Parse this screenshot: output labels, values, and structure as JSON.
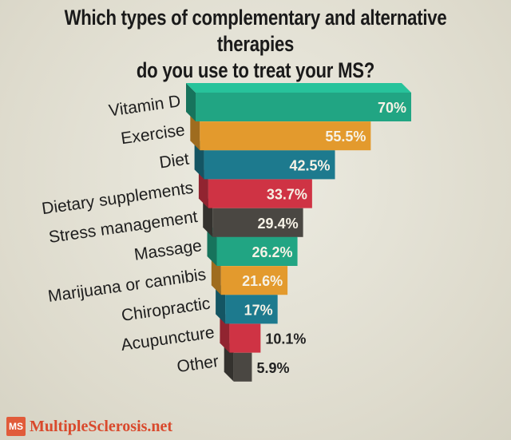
{
  "title_line1": "Which types of complementary and alternative therapies",
  "title_line2": "do you use to treat your MS?",
  "footer": {
    "logo_mark": "MS",
    "site_name": "MultipleSclerosis.net"
  },
  "chart_data": {
    "type": "bar",
    "orientation": "horizontal",
    "title": "Which types of complementary and alternative therapies do you use to treat your MS?",
    "categories": [
      "Vitamin D",
      "Exercise",
      "Diet",
      "Dietary supplements",
      "Stress management",
      "Massage",
      "Marijuana or cannibis",
      "Chiropractic",
      "Acupuncture",
      "Other"
    ],
    "values": [
      70,
      55.5,
      42.5,
      33.7,
      29.4,
      26.2,
      21.6,
      17,
      10.1,
      5.9
    ],
    "value_labels": [
      "70%",
      "55.5%",
      "42.5%",
      "33.7%",
      "29.4%",
      "26.2%",
      "21.6%",
      "17%",
      "10.1%",
      "5.9%"
    ],
    "colors": [
      "#21a583",
      "#e39a2d",
      "#1d7a8e",
      "#cf3344",
      "#4a4742",
      "#21a583",
      "#e39a2d",
      "#1d7a8e",
      "#cf3344",
      "#4a4742"
    ],
    "xlim": [
      0,
      70
    ],
    "grid": false,
    "legend": "none"
  }
}
